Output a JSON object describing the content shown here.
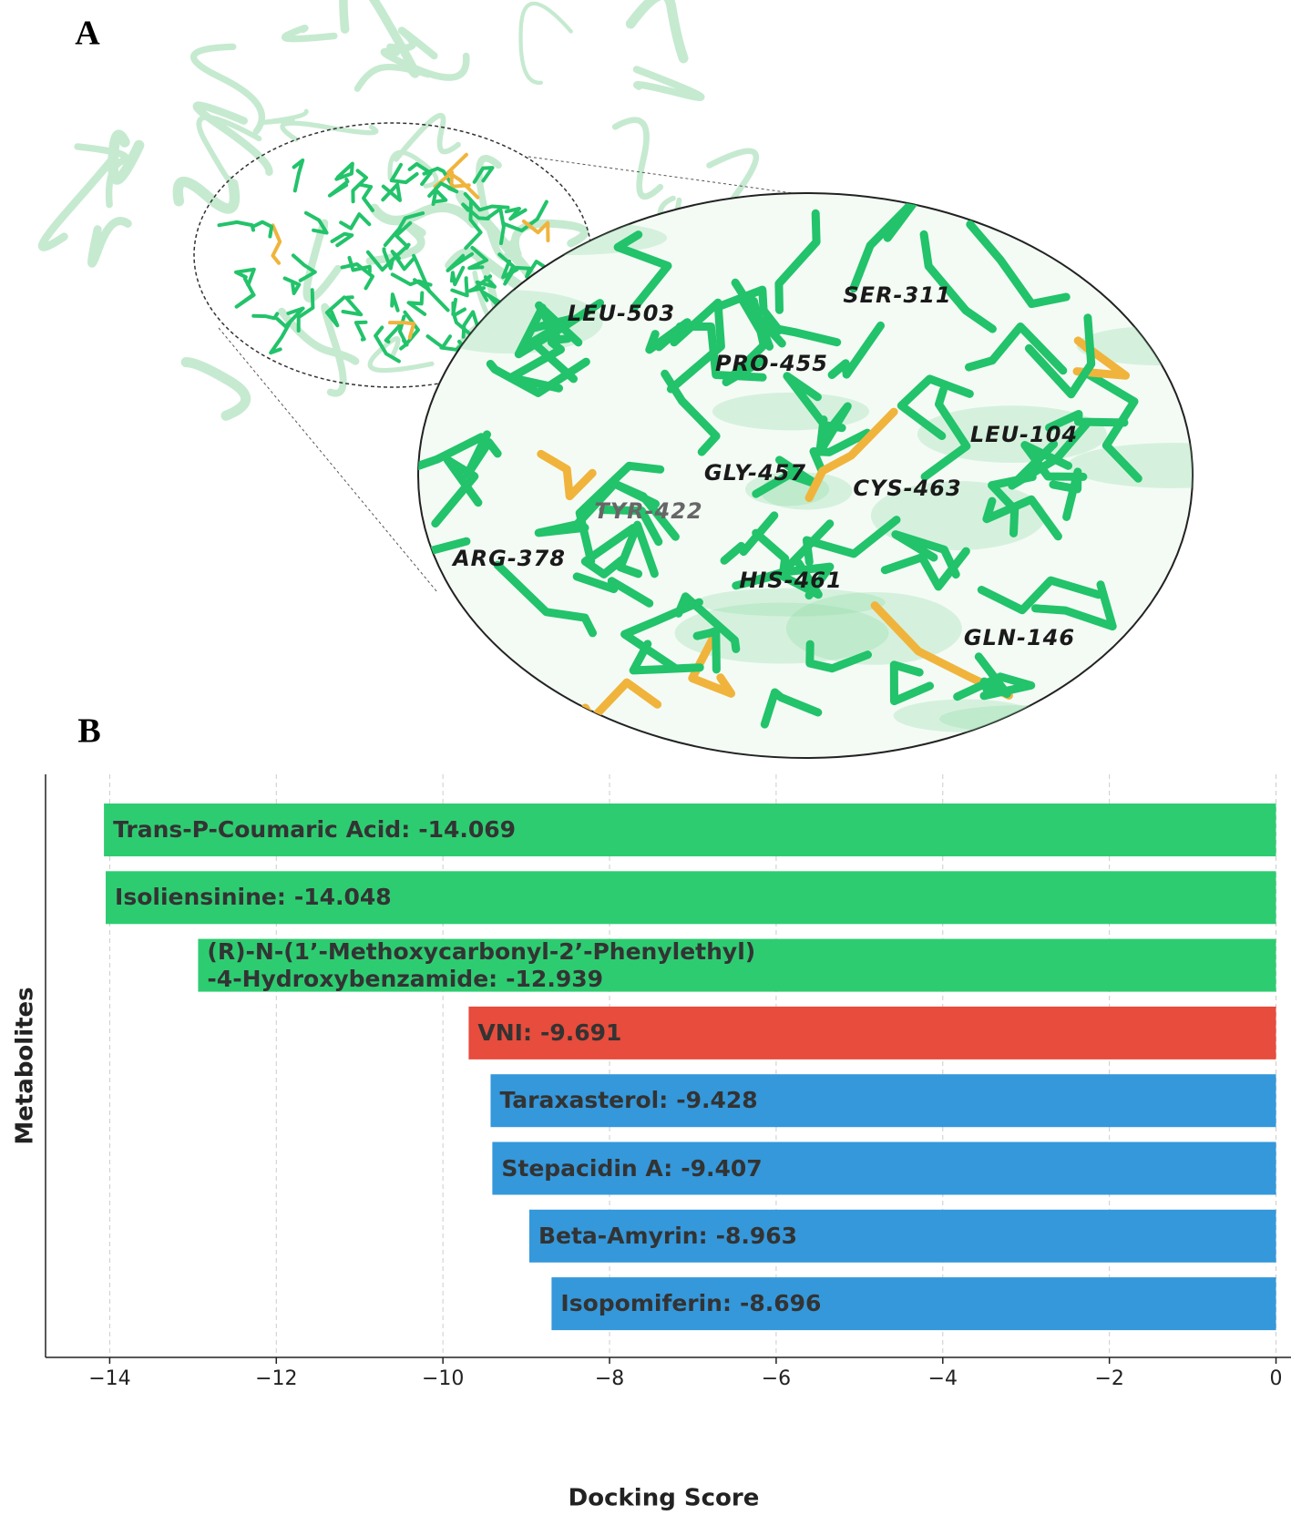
{
  "panels": {
    "a": {
      "label": "A",
      "residues": [
        "LEU-503",
        "SER-311",
        "PRO-455",
        "LEU-104",
        "GLY-457",
        "CYS-463",
        "TYR-422",
        "ARG-378",
        "HIS-461",
        "GLN-146"
      ]
    },
    "b": {
      "label": "B"
    }
  },
  "chart_data": {
    "type": "barh",
    "xlabel": "Docking Score",
    "ylabel": "Metabolites",
    "categories": [
      "Trans-P-Coumaric Acid:",
      "Isoliensinine:",
      "(R)-N-(1’-Methoxycarbonyl-2’-Phenylethyl)\n-4-Hydroxybenzamide:",
      "VNI:",
      "Taraxasterol:",
      "Stepacidin A:",
      "Beta-Amyrin:",
      "Isopomiferin:"
    ],
    "values": [
      -14.069,
      -14.048,
      -12.939,
      -9.691,
      -9.428,
      -9.407,
      -8.963,
      -8.696
    ],
    "colors": [
      "#2ecc71",
      "#2ecc71",
      "#2ecc71",
      "#e74c3c",
      "#3498db",
      "#3498db",
      "#3498db",
      "#3498db"
    ],
    "xlim": [
      -14.77,
      0.18
    ],
    "xticks": [
      {
        "value": -14,
        "label": "−14"
      },
      {
        "value": -12,
        "label": "−12"
      },
      {
        "value": -10,
        "label": "−10"
      },
      {
        "value": -8,
        "label": "−8"
      },
      {
        "value": -6,
        "label": "−6"
      },
      {
        "value": -4,
        "label": "−4"
      },
      {
        "value": -2,
        "label": "−2"
      },
      0
    ],
    "grid": true
  }
}
